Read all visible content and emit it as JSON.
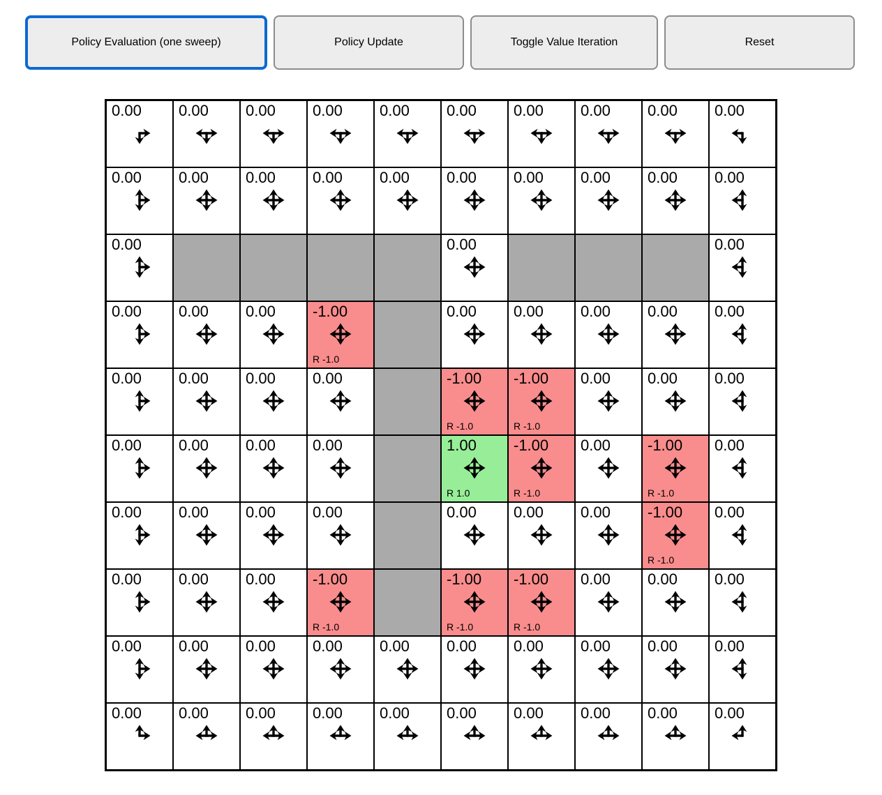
{
  "toolbar": {
    "accent_color": "#0b6ad1",
    "buttons": [
      {
        "label": "Policy Evaluation (one sweep)",
        "focused": true
      },
      {
        "label": "Policy Update",
        "focused": false
      },
      {
        "label": "Toggle Value Iteration",
        "focused": false
      },
      {
        "label": "Reset",
        "focused": false
      }
    ]
  },
  "grid": {
    "rows": 10,
    "cols": 10,
    "colors": {
      "normal": "#ffffff",
      "wall": "#aaaaaa",
      "negative": "#f98c8c",
      "positive": "#98ee98",
      "border": "#000000",
      "arrow": "#000000"
    },
    "cells": [
      [
        {
          "type": "normal",
          "value": "0.00",
          "arrows": "RD",
          "reward": ""
        },
        {
          "type": "normal",
          "value": "0.00",
          "arrows": "LRD",
          "reward": ""
        },
        {
          "type": "normal",
          "value": "0.00",
          "arrows": "LRD",
          "reward": ""
        },
        {
          "type": "normal",
          "value": "0.00",
          "arrows": "LRD",
          "reward": ""
        },
        {
          "type": "normal",
          "value": "0.00",
          "arrows": "LRD",
          "reward": ""
        },
        {
          "type": "normal",
          "value": "0.00",
          "arrows": "LRD",
          "reward": ""
        },
        {
          "type": "normal",
          "value": "0.00",
          "arrows": "LRD",
          "reward": ""
        },
        {
          "type": "normal",
          "value": "0.00",
          "arrows": "LRD",
          "reward": ""
        },
        {
          "type": "normal",
          "value": "0.00",
          "arrows": "LRD",
          "reward": ""
        },
        {
          "type": "normal",
          "value": "0.00",
          "arrows": "LD",
          "reward": ""
        }
      ],
      [
        {
          "type": "normal",
          "value": "0.00",
          "arrows": "URD",
          "reward": ""
        },
        {
          "type": "normal",
          "value": "0.00",
          "arrows": "UDLR",
          "reward": ""
        },
        {
          "type": "normal",
          "value": "0.00",
          "arrows": "UDLR",
          "reward": ""
        },
        {
          "type": "normal",
          "value": "0.00",
          "arrows": "UDLR",
          "reward": ""
        },
        {
          "type": "normal",
          "value": "0.00",
          "arrows": "UDLR",
          "reward": ""
        },
        {
          "type": "normal",
          "value": "0.00",
          "arrows": "UDLR",
          "reward": ""
        },
        {
          "type": "normal",
          "value": "0.00",
          "arrows": "UDLR",
          "reward": ""
        },
        {
          "type": "normal",
          "value": "0.00",
          "arrows": "UDLR",
          "reward": ""
        },
        {
          "type": "normal",
          "value": "0.00",
          "arrows": "UDLR",
          "reward": ""
        },
        {
          "type": "normal",
          "value": "0.00",
          "arrows": "ULD",
          "reward": ""
        }
      ],
      [
        {
          "type": "normal",
          "value": "0.00",
          "arrows": "URD",
          "reward": ""
        },
        {
          "type": "wall"
        },
        {
          "type": "wall"
        },
        {
          "type": "wall"
        },
        {
          "type": "wall"
        },
        {
          "type": "normal",
          "value": "0.00",
          "arrows": "UDLR",
          "reward": ""
        },
        {
          "type": "wall"
        },
        {
          "type": "wall"
        },
        {
          "type": "wall"
        },
        {
          "type": "normal",
          "value": "0.00",
          "arrows": "ULD",
          "reward": ""
        }
      ],
      [
        {
          "type": "normal",
          "value": "0.00",
          "arrows": "URD",
          "reward": ""
        },
        {
          "type": "normal",
          "value": "0.00",
          "arrows": "UDLR",
          "reward": ""
        },
        {
          "type": "normal",
          "value": "0.00",
          "arrows": "UDLR",
          "reward": ""
        },
        {
          "type": "negative",
          "value": "-1.00",
          "arrows": "UDLR",
          "reward": "R -1.0"
        },
        {
          "type": "wall"
        },
        {
          "type": "normal",
          "value": "0.00",
          "arrows": "UDLR",
          "reward": ""
        },
        {
          "type": "normal",
          "value": "0.00",
          "arrows": "UDLR",
          "reward": ""
        },
        {
          "type": "normal",
          "value": "0.00",
          "arrows": "UDLR",
          "reward": ""
        },
        {
          "type": "normal",
          "value": "0.00",
          "arrows": "UDLR",
          "reward": ""
        },
        {
          "type": "normal",
          "value": "0.00",
          "arrows": "ULD",
          "reward": ""
        }
      ],
      [
        {
          "type": "normal",
          "value": "0.00",
          "arrows": "URD",
          "reward": ""
        },
        {
          "type": "normal",
          "value": "0.00",
          "arrows": "UDLR",
          "reward": ""
        },
        {
          "type": "normal",
          "value": "0.00",
          "arrows": "UDLR",
          "reward": ""
        },
        {
          "type": "normal",
          "value": "0.00",
          "arrows": "UDLR",
          "reward": ""
        },
        {
          "type": "wall"
        },
        {
          "type": "negative",
          "value": "-1.00",
          "arrows": "UDLR",
          "reward": "R -1.0"
        },
        {
          "type": "negative",
          "value": "-1.00",
          "arrows": "UDLR",
          "reward": "R -1.0"
        },
        {
          "type": "normal",
          "value": "0.00",
          "arrows": "UDLR",
          "reward": ""
        },
        {
          "type": "normal",
          "value": "0.00",
          "arrows": "UDLR",
          "reward": ""
        },
        {
          "type": "normal",
          "value": "0.00",
          "arrows": "ULD",
          "reward": ""
        }
      ],
      [
        {
          "type": "normal",
          "value": "0.00",
          "arrows": "URD",
          "reward": ""
        },
        {
          "type": "normal",
          "value": "0.00",
          "arrows": "UDLR",
          "reward": ""
        },
        {
          "type": "normal",
          "value": "0.00",
          "arrows": "UDLR",
          "reward": ""
        },
        {
          "type": "normal",
          "value": "0.00",
          "arrows": "UDLR",
          "reward": ""
        },
        {
          "type": "wall"
        },
        {
          "type": "positive",
          "value": "1.00",
          "arrows": "UDLR",
          "reward": "R 1.0"
        },
        {
          "type": "negative",
          "value": "-1.00",
          "arrows": "UDLR",
          "reward": "R -1.0"
        },
        {
          "type": "normal",
          "value": "0.00",
          "arrows": "UDLR",
          "reward": ""
        },
        {
          "type": "negative",
          "value": "-1.00",
          "arrows": "UDLR",
          "reward": "R -1.0"
        },
        {
          "type": "normal",
          "value": "0.00",
          "arrows": "ULD",
          "reward": ""
        }
      ],
      [
        {
          "type": "normal",
          "value": "0.00",
          "arrows": "URD",
          "reward": ""
        },
        {
          "type": "normal",
          "value": "0.00",
          "arrows": "UDLR",
          "reward": ""
        },
        {
          "type": "normal",
          "value": "0.00",
          "arrows": "UDLR",
          "reward": ""
        },
        {
          "type": "normal",
          "value": "0.00",
          "arrows": "UDLR",
          "reward": ""
        },
        {
          "type": "wall"
        },
        {
          "type": "normal",
          "value": "0.00",
          "arrows": "UDLR",
          "reward": ""
        },
        {
          "type": "normal",
          "value": "0.00",
          "arrows": "UDLR",
          "reward": ""
        },
        {
          "type": "normal",
          "value": "0.00",
          "arrows": "UDLR",
          "reward": ""
        },
        {
          "type": "negative",
          "value": "-1.00",
          "arrows": "UDLR",
          "reward": "R -1.0"
        },
        {
          "type": "normal",
          "value": "0.00",
          "arrows": "ULD",
          "reward": ""
        }
      ],
      [
        {
          "type": "normal",
          "value": "0.00",
          "arrows": "URD",
          "reward": ""
        },
        {
          "type": "normal",
          "value": "0.00",
          "arrows": "UDLR",
          "reward": ""
        },
        {
          "type": "normal",
          "value": "0.00",
          "arrows": "UDLR",
          "reward": ""
        },
        {
          "type": "negative",
          "value": "-1.00",
          "arrows": "UDLR",
          "reward": "R -1.0"
        },
        {
          "type": "wall"
        },
        {
          "type": "negative",
          "value": "-1.00",
          "arrows": "UDLR",
          "reward": "R -1.0"
        },
        {
          "type": "negative",
          "value": "-1.00",
          "arrows": "UDLR",
          "reward": "R -1.0"
        },
        {
          "type": "normal",
          "value": "0.00",
          "arrows": "UDLR",
          "reward": ""
        },
        {
          "type": "normal",
          "value": "0.00",
          "arrows": "UDLR",
          "reward": ""
        },
        {
          "type": "normal",
          "value": "0.00",
          "arrows": "ULD",
          "reward": ""
        }
      ],
      [
        {
          "type": "normal",
          "value": "0.00",
          "arrows": "URD",
          "reward": ""
        },
        {
          "type": "normal",
          "value": "0.00",
          "arrows": "UDLR",
          "reward": ""
        },
        {
          "type": "normal",
          "value": "0.00",
          "arrows": "UDLR",
          "reward": ""
        },
        {
          "type": "normal",
          "value": "0.00",
          "arrows": "UDLR",
          "reward": ""
        },
        {
          "type": "normal",
          "value": "0.00",
          "arrows": "UDLR",
          "reward": ""
        },
        {
          "type": "normal",
          "value": "0.00",
          "arrows": "UDLR",
          "reward": ""
        },
        {
          "type": "normal",
          "value": "0.00",
          "arrows": "UDLR",
          "reward": ""
        },
        {
          "type": "normal",
          "value": "0.00",
          "arrows": "UDLR",
          "reward": ""
        },
        {
          "type": "normal",
          "value": "0.00",
          "arrows": "UDLR",
          "reward": ""
        },
        {
          "type": "normal",
          "value": "0.00",
          "arrows": "ULD",
          "reward": ""
        }
      ],
      [
        {
          "type": "normal",
          "value": "0.00",
          "arrows": "UR",
          "reward": ""
        },
        {
          "type": "normal",
          "value": "0.00",
          "arrows": "ULR",
          "reward": ""
        },
        {
          "type": "normal",
          "value": "0.00",
          "arrows": "ULR",
          "reward": ""
        },
        {
          "type": "normal",
          "value": "0.00",
          "arrows": "ULR",
          "reward": ""
        },
        {
          "type": "normal",
          "value": "0.00",
          "arrows": "ULR",
          "reward": ""
        },
        {
          "type": "normal",
          "value": "0.00",
          "arrows": "ULR",
          "reward": ""
        },
        {
          "type": "normal",
          "value": "0.00",
          "arrows": "ULR",
          "reward": ""
        },
        {
          "type": "normal",
          "value": "0.00",
          "arrows": "ULR",
          "reward": ""
        },
        {
          "type": "normal",
          "value": "0.00",
          "arrows": "ULR",
          "reward": ""
        },
        {
          "type": "normal",
          "value": "0.00",
          "arrows": "UL",
          "reward": ""
        }
      ]
    ]
  }
}
